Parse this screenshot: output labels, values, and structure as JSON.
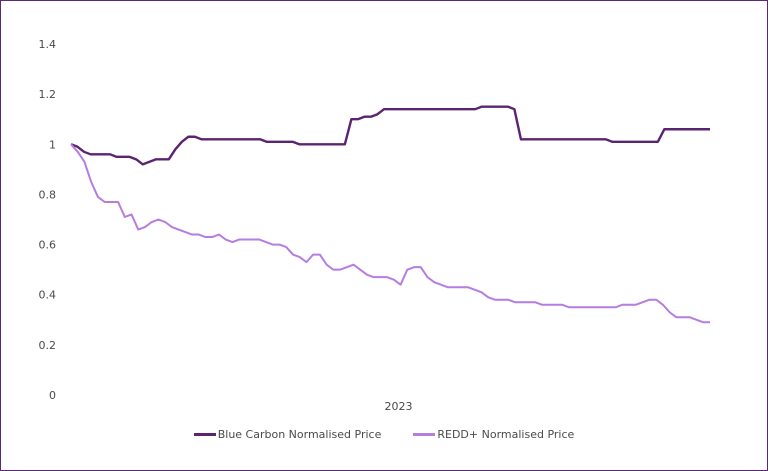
{
  "colors": {
    "blue_carbon": "#5b2470",
    "redd": "#b57de0",
    "frame": "#5a2a7a"
  },
  "chart_data": {
    "type": "line",
    "title": "",
    "xlabel": "",
    "ylabel": "",
    "ylim": [
      0,
      1.4
    ],
    "y_ticks": [
      "0",
      "0.2",
      "0.4",
      "0.6",
      "0.8",
      "1",
      "1.2",
      "1.4"
    ],
    "x_ticks": [
      "2023"
    ],
    "grid": false,
    "legend_placement": "bottom",
    "series": [
      {
        "name": "Blue Carbon Normalised Price",
        "color": "#5b2470",
        "values": [
          1.0,
          0.99,
          0.97,
          0.96,
          0.96,
          0.96,
          0.96,
          0.95,
          0.95,
          0.95,
          0.94,
          0.92,
          0.93,
          0.94,
          0.94,
          0.94,
          0.98,
          1.01,
          1.03,
          1.03,
          1.02,
          1.02,
          1.02,
          1.02,
          1.02,
          1.02,
          1.02,
          1.02,
          1.02,
          1.02,
          1.01,
          1.01,
          1.01,
          1.01,
          1.01,
          1.0,
          1.0,
          1.0,
          1.0,
          1.0,
          1.0,
          1.0,
          1.0,
          1.1,
          1.1,
          1.11,
          1.11,
          1.12,
          1.14,
          1.14,
          1.14,
          1.14,
          1.14,
          1.14,
          1.14,
          1.14,
          1.14,
          1.14,
          1.14,
          1.14,
          1.14,
          1.14,
          1.14,
          1.15,
          1.15,
          1.15,
          1.15,
          1.15,
          1.14,
          1.02,
          1.02,
          1.02,
          1.02,
          1.02,
          1.02,
          1.02,
          1.02,
          1.02,
          1.02,
          1.02,
          1.02,
          1.02,
          1.02,
          1.01,
          1.01,
          1.01,
          1.01,
          1.01,
          1.01,
          1.01,
          1.01,
          1.06,
          1.06,
          1.06,
          1.06,
          1.06,
          1.06,
          1.06,
          1.06
        ]
      },
      {
        "name": "REDD+ Normalised Price",
        "color": "#b57de0",
        "values": [
          1.0,
          0.97,
          0.93,
          0.85,
          0.79,
          0.77,
          0.77,
          0.77,
          0.71,
          0.72,
          0.66,
          0.67,
          0.69,
          0.7,
          0.69,
          0.67,
          0.66,
          0.65,
          0.64,
          0.64,
          0.63,
          0.63,
          0.64,
          0.62,
          0.61,
          0.62,
          0.62,
          0.62,
          0.62,
          0.61,
          0.6,
          0.6,
          0.59,
          0.56,
          0.55,
          0.53,
          0.56,
          0.56,
          0.52,
          0.5,
          0.5,
          0.51,
          0.52,
          0.5,
          0.48,
          0.47,
          0.47,
          0.47,
          0.46,
          0.44,
          0.5,
          0.51,
          0.51,
          0.47,
          0.45,
          0.44,
          0.43,
          0.43,
          0.43,
          0.43,
          0.42,
          0.41,
          0.39,
          0.38,
          0.38,
          0.38,
          0.37,
          0.37,
          0.37,
          0.37,
          0.36,
          0.36,
          0.36,
          0.36,
          0.35,
          0.35,
          0.35,
          0.35,
          0.35,
          0.35,
          0.35,
          0.35,
          0.36,
          0.36,
          0.36,
          0.37,
          0.38,
          0.38,
          0.36,
          0.33,
          0.31,
          0.31,
          0.31,
          0.3,
          0.29,
          0.29
        ]
      }
    ]
  }
}
